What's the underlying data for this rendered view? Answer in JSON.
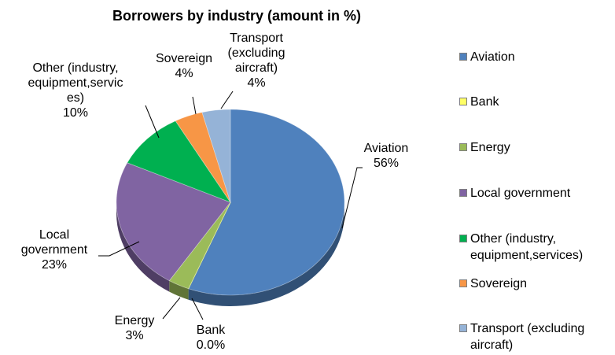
{
  "chart_data": {
    "type": "pie",
    "title": "Borrowers by industry (amount in %)",
    "slices": [
      {
        "name": "Aviation",
        "legend": "Aviation",
        "value": 56,
        "label_lines": [
          "Aviation",
          "56%"
        ],
        "color": "#4f81bd"
      },
      {
        "name": "Bank",
        "legend": "Bank",
        "value": 0.0,
        "label_lines": [
          "Bank",
          "0.0%"
        ],
        "color": "#ffff66"
      },
      {
        "name": "Energy",
        "legend": "Energy",
        "value": 3,
        "label_lines": [
          "Energy",
          "3%"
        ],
        "color": "#9bbb59"
      },
      {
        "name": "Local government",
        "legend": "Local government",
        "value": 23,
        "label_lines": [
          "Local",
          "government",
          "23%"
        ],
        "color": "#8064a2"
      },
      {
        "name": "Other (industry, equipment,services)",
        "legend": "Other (industry,\nequipment,services)",
        "value": 10,
        "label_lines": [
          "Other (industry,",
          "equipment,servic",
          "es)",
          "10%"
        ],
        "color": "#00b050"
      },
      {
        "name": "Sovereign",
        "legend": "Sovereign",
        "value": 4,
        "label_lines": [
          "Sovereign",
          "4%"
        ],
        "color": "#f79646"
      },
      {
        "name": "Transport (excluding aircraft)",
        "legend": "Transport (excluding\naircraft)",
        "value": 4,
        "label_lines": [
          "Transport",
          "(excluding",
          "aircraft)",
          "4%"
        ],
        "color": "#95b3d7"
      }
    ],
    "legend_position": "right"
  }
}
